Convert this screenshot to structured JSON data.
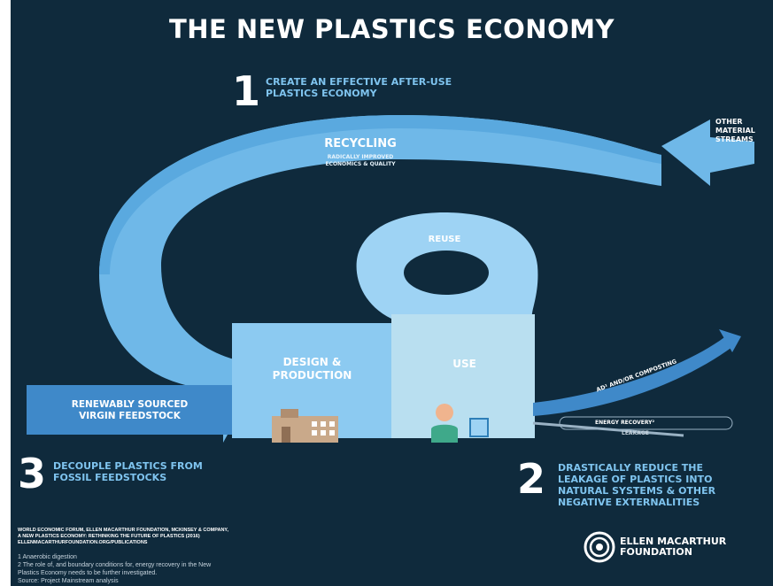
{
  "title": "THE NEW PLASTICS ECONOMY",
  "step1": {
    "number": "1",
    "text": "CREATE AN EFFECTIVE AFTER-USE\nPLASTICS ECONOMY"
  },
  "step2": {
    "number": "2",
    "text": "DRASTICALLY REDUCE THE\nLEAKAGE OF PLASTICS INTO\nNATURAL SYSTEMS & OTHER\nNEGATIVE EXTERNALITIES"
  },
  "step3": {
    "number": "3",
    "text": "DECOUPLE PLASTICS FROM\nFOSSIL FEEDSTOCKS"
  },
  "labels": {
    "recycling": "RECYCLING",
    "recycling_sub": "RADICALLY IMPROVED\nECONOMICS & QUALITY",
    "other_streams": "OTHER\nMATERIAL\nSTREAMS",
    "reuse": "REUSE",
    "design_production": "DESIGN &\nPRODUCTION",
    "use": "USE",
    "renewable": "RENEWABLY SOURCED\nVIRGIN FEEDSTOCK",
    "composting": "AD¹ AND/OR COMPOSTING",
    "energy_recovery": "ENERGY RECOVERY²",
    "leakage": "LEAKAGE"
  },
  "source_text": "WORLD ECONOMIC FORUM, ELLEN MACARTHUR FOUNDATION, MCKINSEY & COMPANY,\nA NEW PLASTICS ECONOMY: RETHINKING THE FUTURE OF PLASTICS (2016)\nELLENMACARTHURFOUNDATION.ORG/PUBLICATIONS",
  "footnotes": "1 Anaerobic digestion\n2 The role of, and boundary conditions for, energy recovery in the New\nPlastics Economy needs to be further investigated.\nSource: Project Mainstream analysis",
  "logo_text": "ELLEN MACARTHUR\nFOUNDATION",
  "colors": {
    "background": "#0f2a3c",
    "loop_blue": "#6fb8e8",
    "light_blue": "#9ed3f4",
    "mid_blue": "#3f89c9",
    "use_box": "#b9dff0"
  }
}
